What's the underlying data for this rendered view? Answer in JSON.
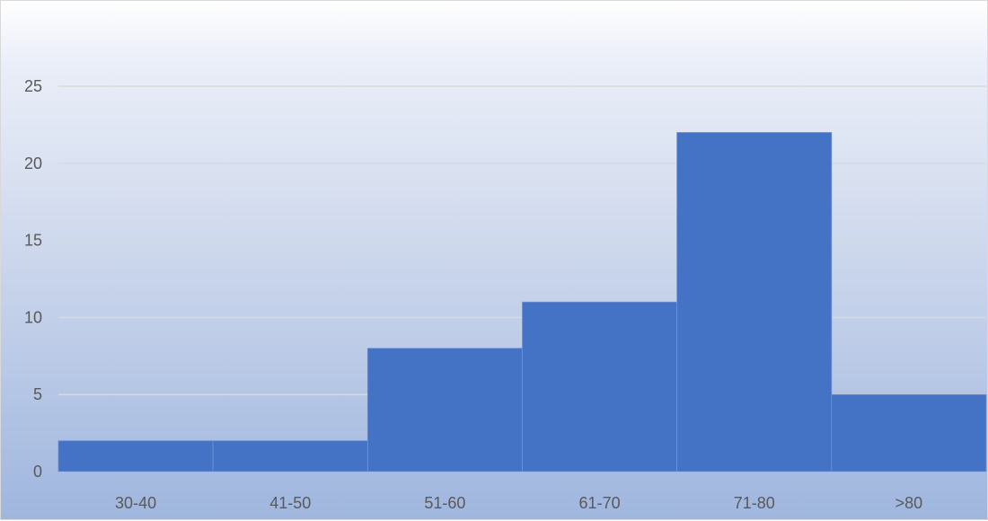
{
  "chart_data": {
    "type": "bar",
    "title": "",
    "xlabel": "",
    "ylabel": "",
    "categories": [
      "30-40",
      "41-50",
      "51-60",
      "61-70",
      "71-80",
      ">80"
    ],
    "values": [
      2,
      2,
      8,
      11,
      22,
      5
    ],
    "ylim": [
      0,
      25
    ],
    "yticks": [
      0,
      5,
      10,
      15,
      20,
      25
    ],
    "grid": true,
    "legend": "none",
    "colors": {
      "bar": "#4472c4",
      "bar_edge": "#6f92d6",
      "gridline": "#d9d9d9",
      "tick_text": "#595959"
    }
  }
}
